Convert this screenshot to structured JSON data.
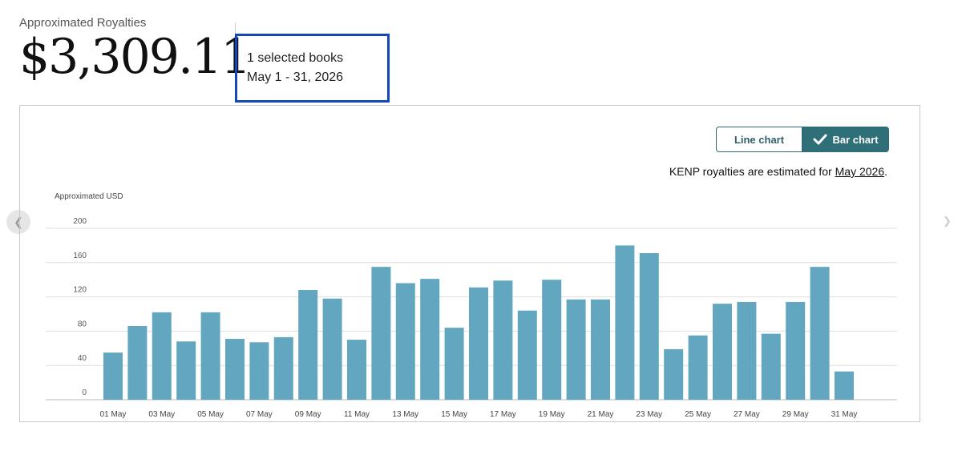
{
  "summary": {
    "label": "Approximated Royalties",
    "amount": "$3,309.11",
    "selection_line1": "1 selected books",
    "selection_line2": "May 1 - 31, 2026"
  },
  "controls": {
    "line_chart_label": "Line chart",
    "bar_chart_label": "Bar chart",
    "selected": "Bar chart"
  },
  "note": {
    "text": "KENP royalties are estimated for ",
    "link": "May 2026",
    "suffix": "."
  },
  "nav": {
    "prev_icon": "chevron-left-icon",
    "next_icon": "chevron-right-icon"
  },
  "colors": {
    "bar": "#62a6bf",
    "accent": "#2f6f78",
    "highlight": "#1447b8"
  },
  "chart_data": {
    "type": "bar",
    "ylabel": "Approximated USD",
    "ylim": [
      0,
      200
    ],
    "yticks": [
      0,
      40,
      80,
      120,
      160,
      200
    ],
    "grid": true,
    "categories": [
      "01 May",
      "02 May",
      "03 May",
      "04 May",
      "05 May",
      "06 May",
      "07 May",
      "08 May",
      "09 May",
      "10 May",
      "11 May",
      "12 May",
      "13 May",
      "14 May",
      "15 May",
      "16 May",
      "17 May",
      "18 May",
      "19 May",
      "20 May",
      "21 May",
      "22 May",
      "23 May",
      "24 May",
      "25 May",
      "26 May",
      "27 May",
      "28 May",
      "29 May",
      "30 May",
      "31 May"
    ],
    "tick_labels": [
      "01 May",
      "03 May",
      "05 May",
      "07 May",
      "09 May",
      "11 May",
      "13 May",
      "15 May",
      "17 May",
      "19 May",
      "21 May",
      "23 May",
      "25 May",
      "27 May",
      "29 May",
      "31 May"
    ],
    "values": [
      55,
      86,
      102,
      68,
      102,
      71,
      67,
      73,
      128,
      118,
      70,
      155,
      136,
      141,
      84,
      131,
      139,
      104,
      140,
      117,
      117,
      180,
      171,
      59,
      75,
      112,
      114,
      77,
      114,
      155,
      33
    ]
  }
}
